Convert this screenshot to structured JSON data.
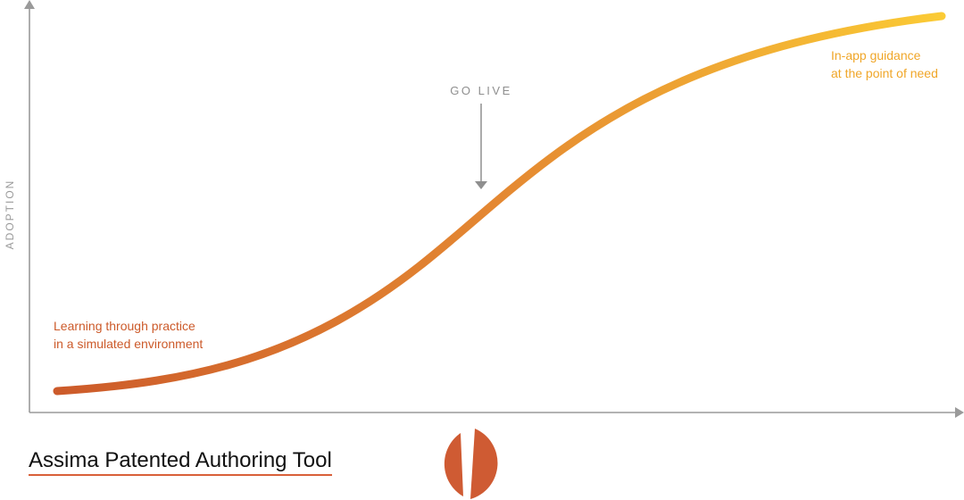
{
  "axes": {
    "y_label": "ADOPTION"
  },
  "milestone": {
    "label": "GO LIVE"
  },
  "annotations": {
    "start": [
      "Learning through practice",
      "in a simulated environment"
    ],
    "end": [
      "In-app guidance",
      "at the point of need"
    ]
  },
  "caption": {
    "text": "Assima Patented Authoring Tool"
  },
  "colors": {
    "curve_start": "#cc5a2a",
    "curve_end": "#fbcb35",
    "axis": "#9a9a9a",
    "logo": "#cf5b33",
    "caption_underline": "#d9603a"
  },
  "icons": {
    "logo": "split-circle-logo"
  }
}
